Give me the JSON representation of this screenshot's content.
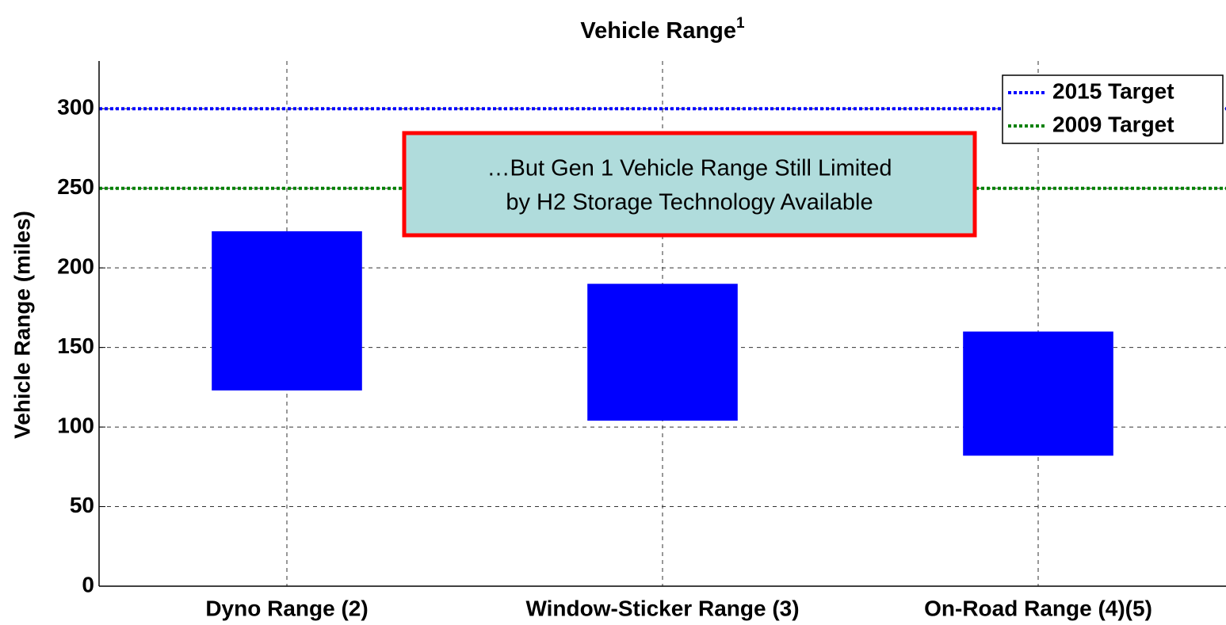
{
  "chart_data": {
    "type": "floating_bar",
    "title": "Vehicle Range",
    "title_note": "1",
    "y_label": "Vehicle Range (miles)",
    "categories": [
      "Dyno Range (2)",
      "Window-Sticker Range (3)",
      "On-Road Range (4)(5)"
    ],
    "low": [
      123,
      104,
      82
    ],
    "high": [
      223,
      190,
      160
    ],
    "color": "#0000ff",
    "reference_lines": [
      {
        "name": "2015 Target",
        "value": 300,
        "color": "#0000ff"
      },
      {
        "name": "2009 Target",
        "value": 250,
        "color": "#008000"
      }
    ],
    "annotation": [
      "…But Gen 1 Vehicle Range Still Limited",
      "by H2 Storage Technology Available"
    ],
    "ylim": [
      0,
      330
    ],
    "yticks": [
      0,
      50,
      100,
      150,
      200,
      250,
      300
    ],
    "grid": true,
    "legend": "upper right"
  }
}
